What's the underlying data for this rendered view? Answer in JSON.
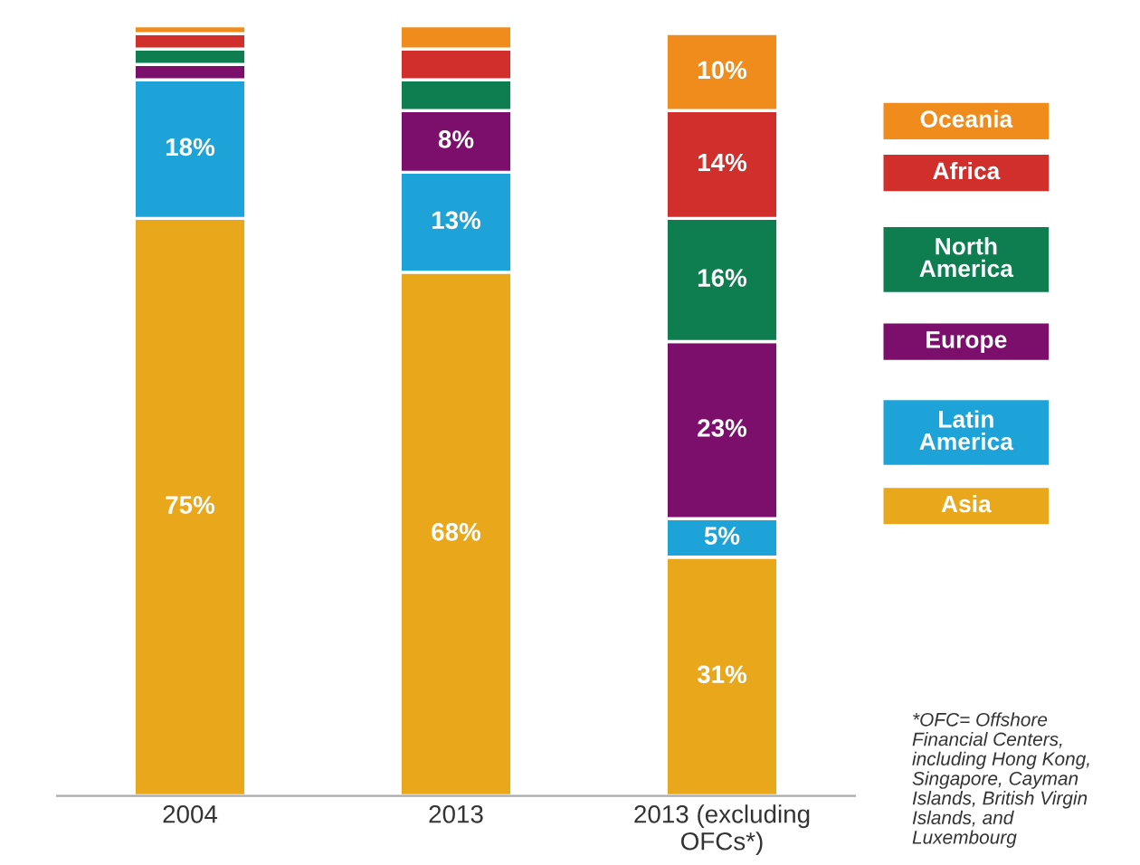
{
  "chart_data": {
    "type": "bar",
    "stacked": true,
    "legend": "right",
    "categories": [
      "2004",
      "2013",
      "2013 (excluding\nOFCs*)"
    ],
    "ylim": [
      0,
      100
    ],
    "series": [
      {
        "name": "Asia",
        "color": "#e9a81c",
        "values": [
          75,
          68,
          31
        ],
        "value_labels": [
          "75%",
          "68%",
          "31%"
        ]
      },
      {
        "name": "Latin\nAmerica",
        "color": "#1ea3d9",
        "values": [
          18,
          13,
          5
        ],
        "value_labels": [
          "18%",
          "13%",
          "5%"
        ]
      },
      {
        "name": "Europe",
        "color": "#7d0f6c",
        "values": [
          2,
          8,
          23
        ],
        "value_labels": [
          null,
          "8%",
          "23%"
        ]
      },
      {
        "name": "North\nAmerica",
        "color": "#0e7e50",
        "values": [
          2,
          4,
          16
        ],
        "value_labels": [
          null,
          null,
          "16%"
        ]
      },
      {
        "name": "Africa",
        "color": "#d12f2c",
        "values": [
          2,
          4,
          14
        ],
        "value_labels": [
          null,
          null,
          "14%"
        ]
      },
      {
        "name": "Oceania",
        "color": "#ef8c1c",
        "values": [
          1,
          3,
          10
        ],
        "value_labels": [
          null,
          null,
          "10%"
        ]
      }
    ],
    "annotations": [
      "*OFC= Offshore\nFinancial Centers,\nincluding Hong Kong,\nSingapore, Cayman\nIslands, British Virgin\nIslands, and\nLuxembourg"
    ]
  }
}
